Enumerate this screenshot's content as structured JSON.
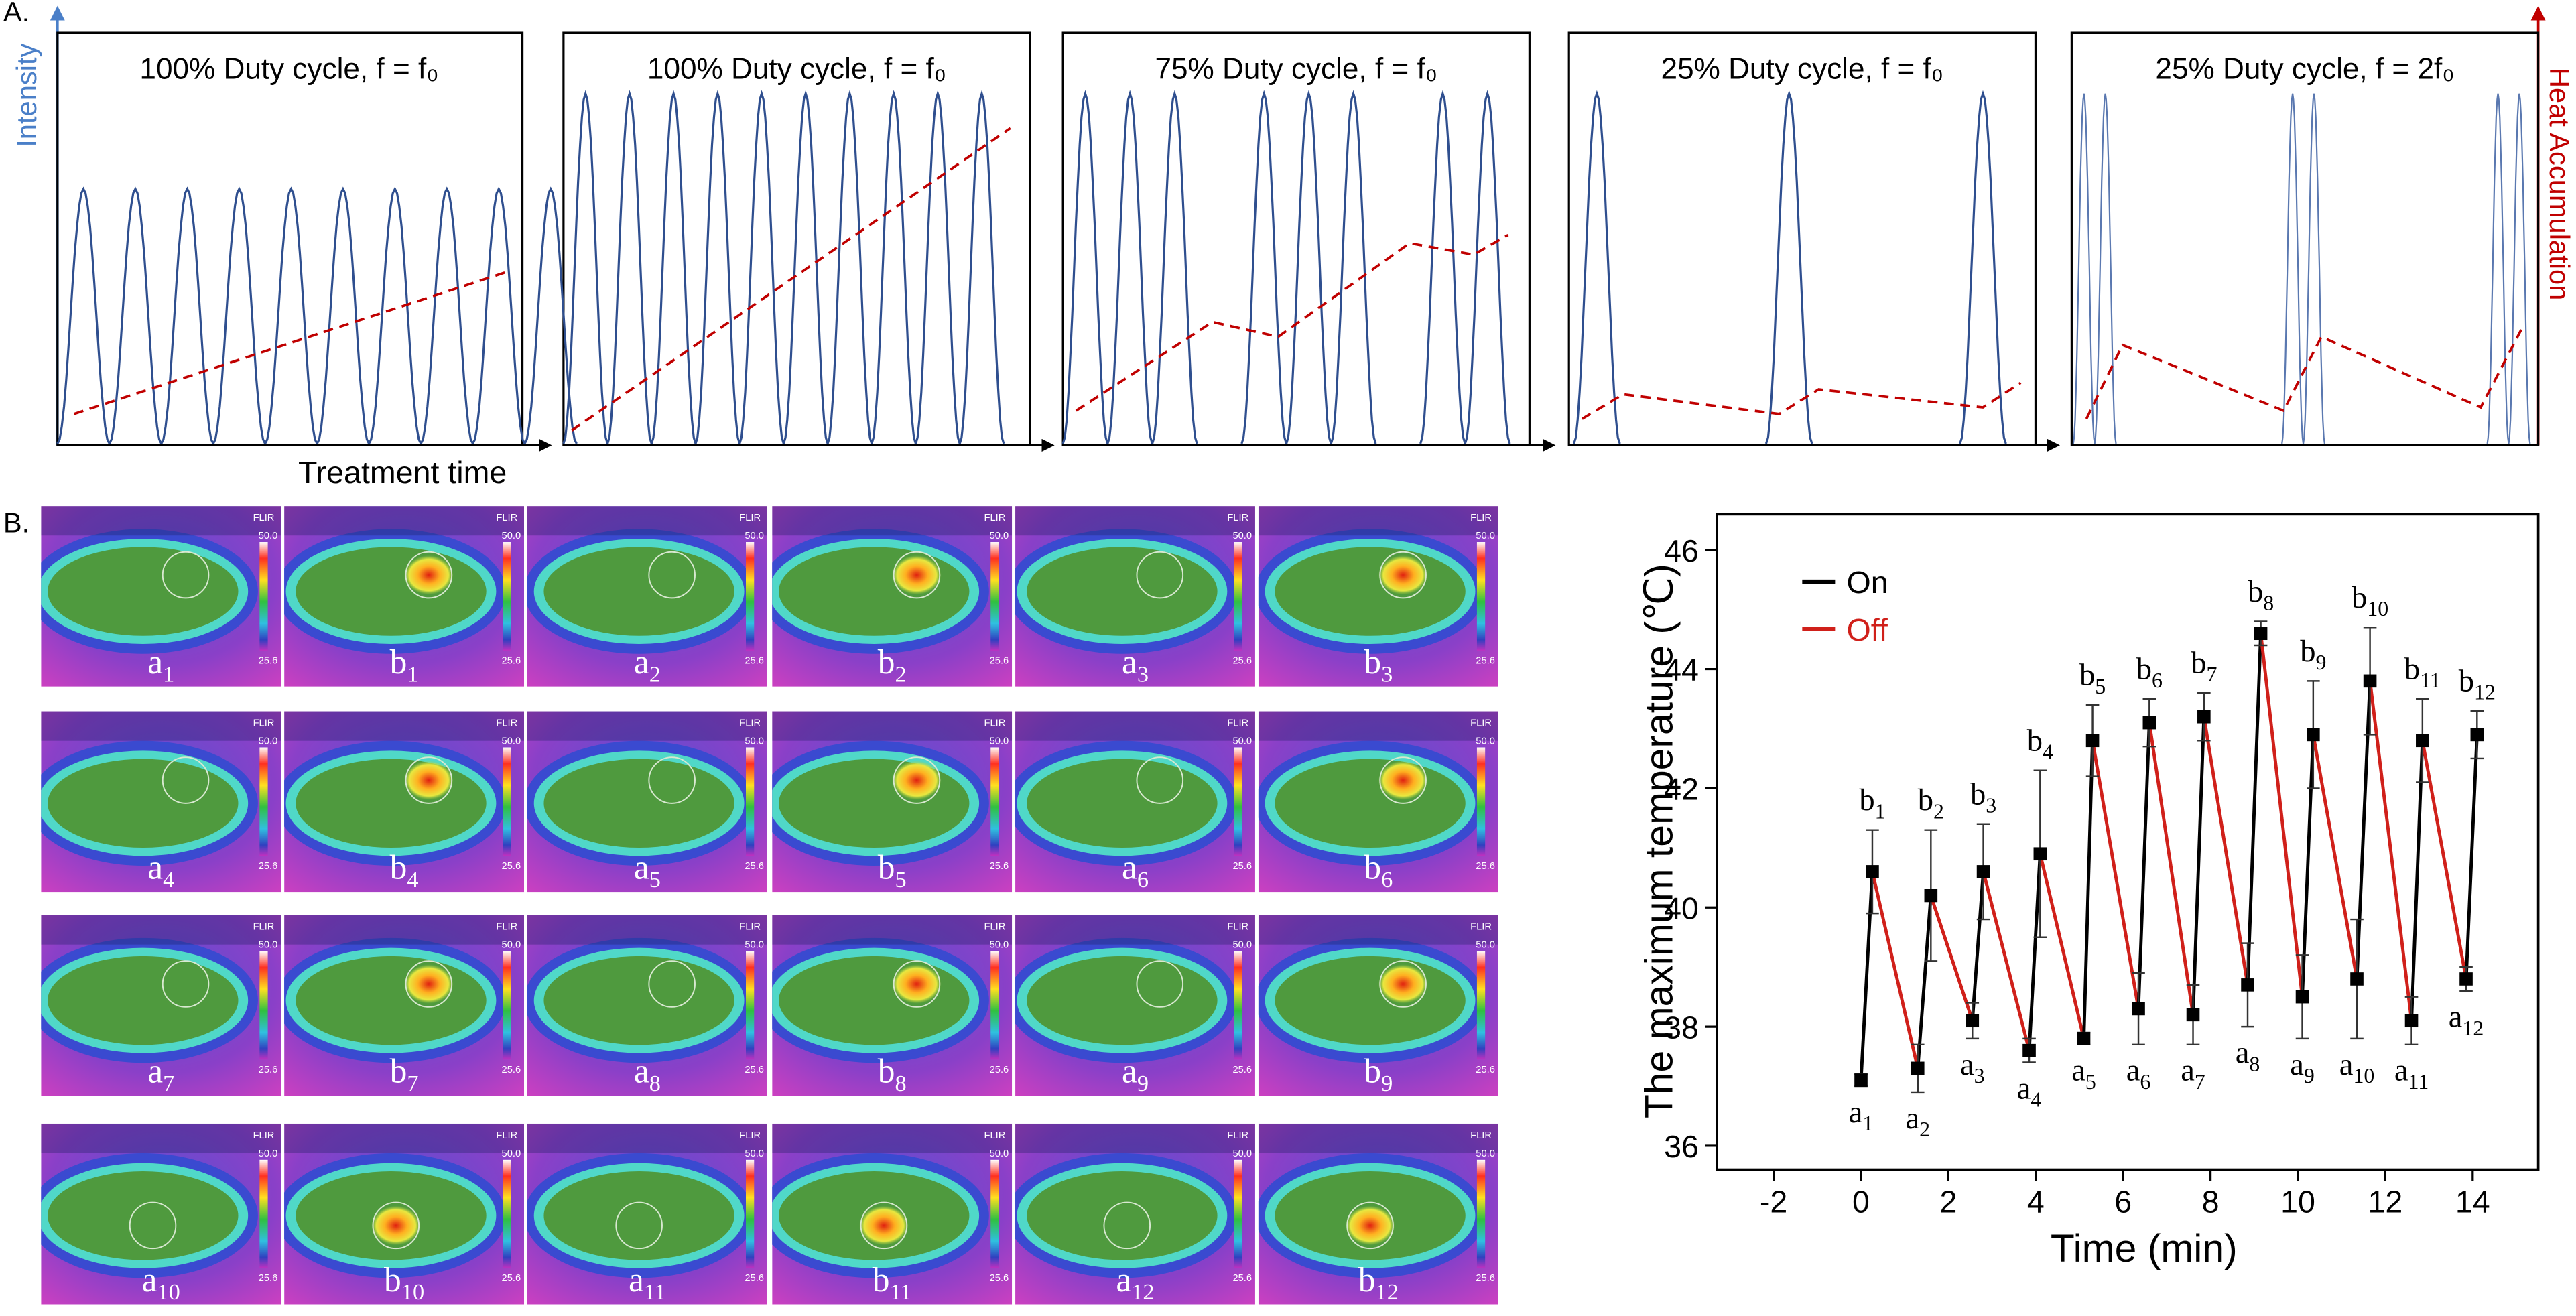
{
  "panel_a": {
    "label": "A.",
    "y_label": "Intensity",
    "x_label": "Treatment time",
    "y2_label": "Heat Accumulation",
    "titles": [
      "100% Duty cycle, f = f₀",
      "100% Duty cycle, f = f₀",
      "75% Duty cycle, f = f₀",
      "25% Duty cycle, f = f₀",
      "25% Duty cycle, f = 2f₀"
    ]
  },
  "panel_b": {
    "label": "B.",
    "colorbar_max": "50.0",
    "colorbar_min": "25.6",
    "brand": "FLIR"
  },
  "chart_data": {
    "type": "line",
    "xlabel": "Time (min)",
    "ylabel": "The maximum temperature (℃)",
    "xlim": [
      -3.3,
      15.5
    ],
    "ylim": [
      35.6,
      46.6
    ],
    "xticks": [
      -2,
      0,
      2,
      4,
      6,
      8,
      10,
      12,
      14
    ],
    "yticks": [
      36,
      38,
      40,
      42,
      44,
      46
    ],
    "legend": [
      {
        "name": "On",
        "color": "#000000"
      },
      {
        "name": "Off",
        "color": "#d0201a"
      }
    ],
    "x": [
      0,
      0.26,
      1.3,
      1.6,
      2.55,
      2.8,
      3.85,
      4.1,
      5.1,
      5.3,
      6.35,
      6.6,
      7.6,
      7.85,
      8.85,
      9.15,
      10.1,
      10.35,
      11.35,
      11.65,
      12.6,
      12.85,
      13.85,
      14.1
    ],
    "values": [
      37.1,
      40.6,
      37.3,
      40.2,
      38.1,
      40.6,
      37.6,
      40.9,
      37.8,
      42.8,
      38.3,
      43.1,
      38.2,
      43.2,
      38.7,
      44.6,
      38.5,
      42.9,
      38.8,
      43.8,
      38.1,
      42.8,
      38.8,
      42.9
    ],
    "errors": [
      0.1,
      0.7,
      0.4,
      1.1,
      0.3,
      0.8,
      0.2,
      1.4,
      0.1,
      0.6,
      0.6,
      0.4,
      0.5,
      0.4,
      0.7,
      0.2,
      0.7,
      0.9,
      1.0,
      0.9,
      0.4,
      0.7,
      0.2,
      0.4
    ],
    "point_labels": [
      [
        "a",
        "1"
      ],
      [
        "b",
        "1"
      ],
      [
        "a",
        "2"
      ],
      [
        "b",
        "2"
      ],
      [
        "a",
        "3"
      ],
      [
        "b",
        "3"
      ],
      [
        "a",
        "4"
      ],
      [
        "b",
        "4"
      ],
      [
        "a",
        "5"
      ],
      [
        "b",
        "5"
      ],
      [
        "a",
        "6"
      ],
      [
        "b",
        "6"
      ],
      [
        "a",
        "7"
      ],
      [
        "b",
        "7"
      ],
      [
        "a",
        "8"
      ],
      [
        "b",
        "8"
      ],
      [
        "a",
        "9"
      ],
      [
        "b",
        "9"
      ],
      [
        "a",
        "10"
      ],
      [
        "b",
        "10"
      ],
      [
        "a",
        "11"
      ],
      [
        "b",
        "11"
      ],
      [
        "a",
        "12"
      ],
      [
        "b",
        "12"
      ]
    ]
  }
}
